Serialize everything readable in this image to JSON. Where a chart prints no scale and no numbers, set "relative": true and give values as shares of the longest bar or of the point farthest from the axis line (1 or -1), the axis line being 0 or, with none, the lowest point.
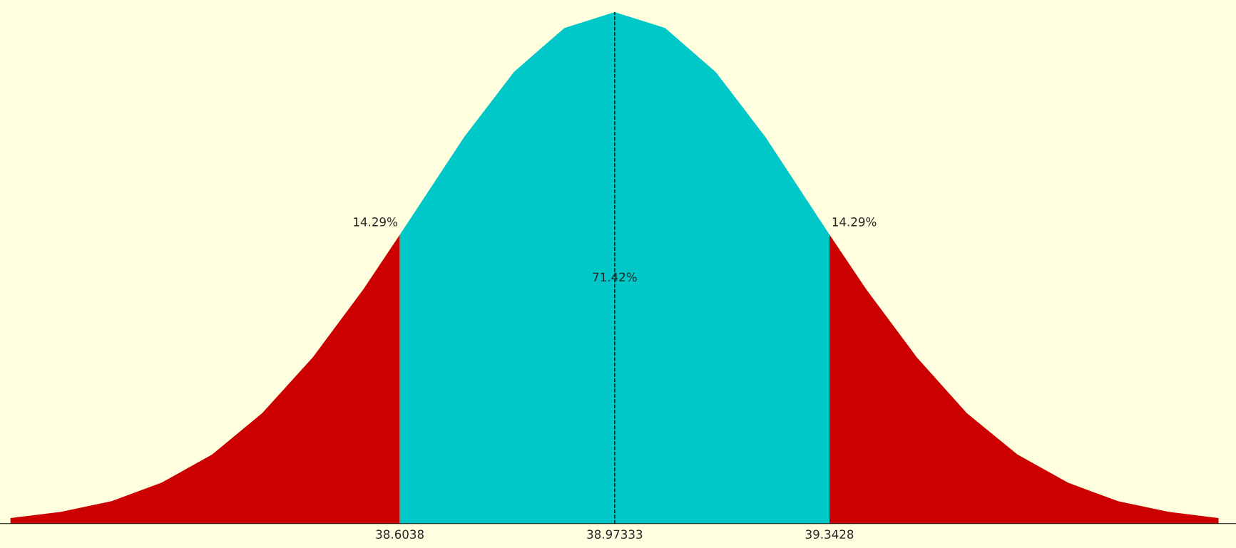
{
  "chart_data": {
    "type": "area",
    "relative": true,
    "xlim": [
      37.916,
      40.042
    ],
    "xticks": [
      38.6038,
      38.97333,
      39.3428
    ],
    "tick_labels": "x",
    "grid": false,
    "legend": false,
    "series": [
      {
        "color": "#cc0000",
        "x": [
          37.934,
          38.021,
          38.108,
          38.194,
          38.281,
          38.367,
          38.454,
          38.541,
          38.6038
        ],
        "values": [
          0.011,
          0.023,
          0.044,
          0.08,
          0.135,
          0.216,
          0.325,
          0.458,
          0.565
        ]
      },
      {
        "color": "#00c8c8",
        "x": [
          38.6038,
          38.714,
          38.8,
          38.887,
          38.97333,
          39.06,
          39.147,
          39.233,
          39.3428
        ],
        "values": [
          0.565,
          0.755,
          0.883,
          0.969,
          1.0,
          0.969,
          0.883,
          0.755,
          0.565
        ]
      },
      {
        "color": "#cc0000",
        "x": [
          39.3428,
          39.406,
          39.493,
          39.579,
          39.666,
          39.753,
          39.839,
          39.926,
          40.012
        ],
        "values": [
          0.565,
          0.458,
          0.325,
          0.216,
          0.135,
          0.08,
          0.044,
          0.023,
          0.011
        ]
      }
    ],
    "ref_lines": [
      {
        "axis": "x",
        "value": 38.97333,
        "line_style": "dashed",
        "color": "#000000"
      }
    ],
    "annotations": [
      {
        "text": "14.29%",
        "x": 38.6038,
        "y": 0.565
      },
      {
        "text": "71.42%",
        "x": 38.97333,
        "y": 0.48
      },
      {
        "text": "14.29%",
        "x": 39.3428,
        "y": 0.565
      }
    ]
  }
}
